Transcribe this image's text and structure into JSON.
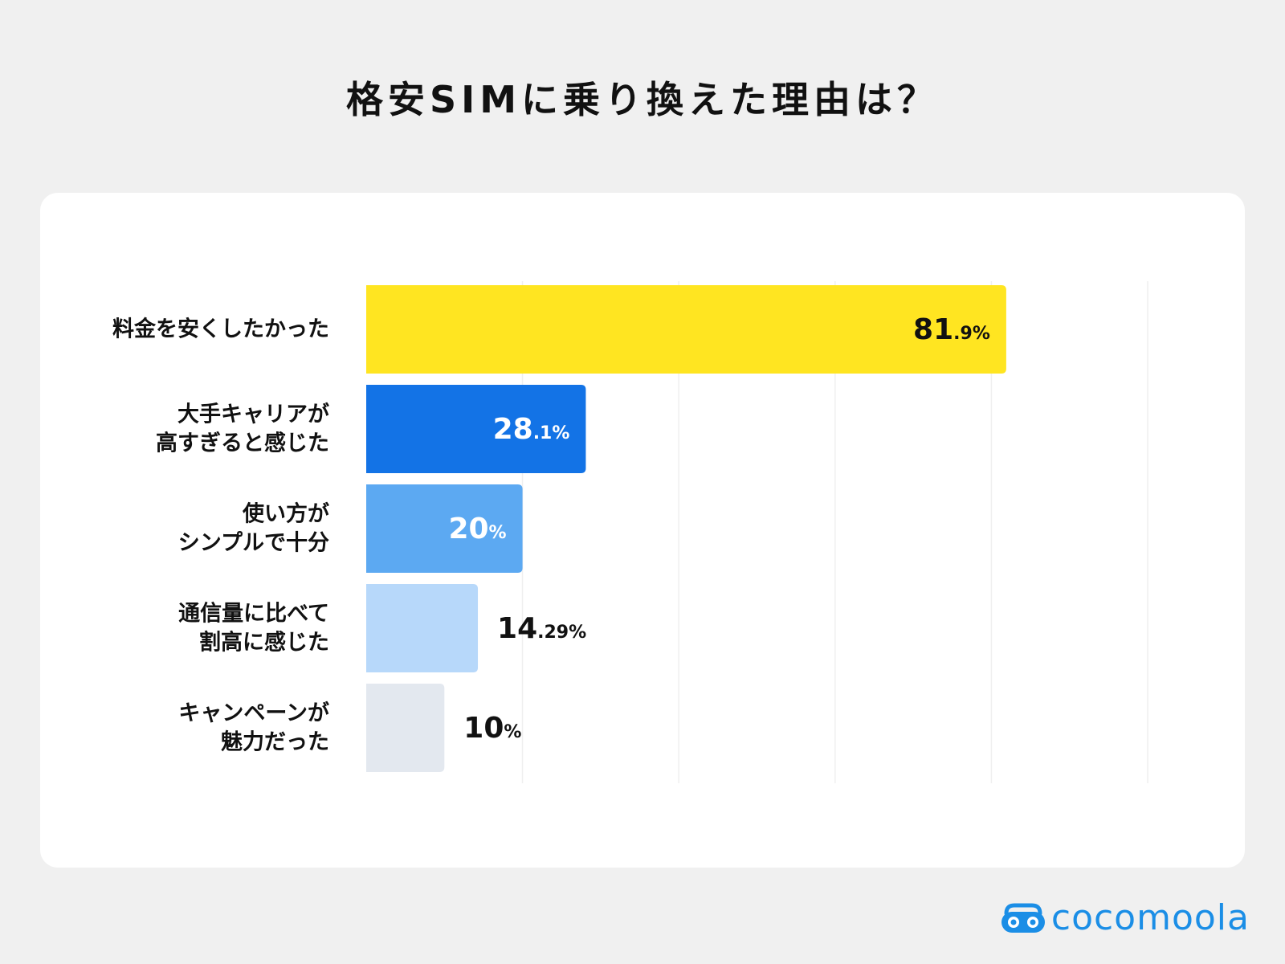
{
  "title": "格安SIMに乗り換えた理由は？",
  "brand": {
    "name": "cocomoola",
    "icon": "glasses-logo-icon",
    "color": "#1b8ee6"
  },
  "chart_data": {
    "type": "bar",
    "orientation": "horizontal",
    "categories": [
      [
        "料金を安くしたかった"
      ],
      [
        "大手キャリアが",
        "高すぎると感じた"
      ],
      [
        "使い方が",
        "シンプルで十分"
      ],
      [
        "通信量に比べて",
        "割高に感じた"
      ],
      [
        "キャンペーンが",
        "魅力だった"
      ]
    ],
    "values": [
      81.9,
      28.1,
      20,
      14.29,
      10
    ],
    "value_labels": [
      {
        "int": "81",
        "dec": ".9%"
      },
      {
        "int": "28",
        "dec": ".1%"
      },
      {
        "int": "20",
        "dec": "%"
      },
      {
        "int": "14",
        "dec": ".29%"
      },
      {
        "int": "10",
        "dec": "%"
      }
    ],
    "colors": [
      "#ffe521",
      "#1373e6",
      "#5ca9f2",
      "#b7d8fa",
      "#e3e8ef"
    ],
    "label_colors": [
      "#111111",
      "#ffffff",
      "#ffffff",
      "#111111",
      "#111111"
    ],
    "label_inside": [
      true,
      true,
      true,
      false,
      false
    ],
    "xlim": [
      0,
      100
    ],
    "grid": true,
    "xlabel": "",
    "ylabel": ""
  }
}
